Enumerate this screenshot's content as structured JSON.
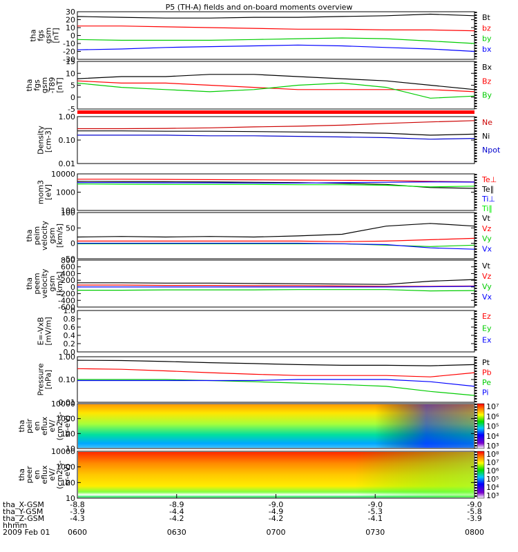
{
  "title": "P5 (TH-A) fields and on-board moments overview",
  "chart_data": {
    "type": "line",
    "time_axis": {
      "label": "hhmm",
      "date": "2009 Feb 01",
      "ticks": [
        "0600",
        "0630",
        "0700",
        "0730",
        "0800"
      ],
      "ephemeris": [
        {
          "name": "tha_X-GSM",
          "values": [
            "-8.8",
            "-8.9",
            "-9.0",
            "-9.0",
            "-9.0"
          ]
        },
        {
          "name": "tha_Y-GSM",
          "values": [
            "-3.9",
            "-4.4",
            "-4.9",
            "-5.3",
            "-5.8"
          ]
        },
        {
          "name": "tha_Z-GSM",
          "values": [
            "-4.3",
            "-4.2",
            "-4.2",
            "-4.1",
            "-3.9"
          ]
        }
      ]
    },
    "panels": [
      {
        "id": "fgs",
        "ylabel": [
          "tha",
          "fgs",
          "gsm",
          "[nT]"
        ],
        "yticks": [
          "30",
          "20",
          "10",
          "0",
          "-10",
          "-20",
          "-30"
        ],
        "series": [
          {
            "name": "Bt",
            "color": "#000000",
            "values": [
              24,
              23,
              22,
              22,
              23,
              23,
              24,
              25,
              27,
              25
            ]
          },
          {
            "name": "bz",
            "color": "#ff0000",
            "values": [
              12,
              12,
              11,
              10,
              9,
              8,
              8,
              7,
              7,
              6
            ]
          },
          {
            "name": "by",
            "color": "#00cc00",
            "values": [
              -5,
              -6,
              -6,
              -6,
              -5,
              -4,
              -3,
              -4,
              -7,
              -10
            ]
          },
          {
            "name": "bx",
            "color": "#0000ff",
            "values": [
              -18,
              -17,
              -15,
              -14,
              -13,
              -12,
              -13,
              -15,
              -17,
              -20
            ]
          }
        ]
      },
      {
        "id": "fgs_t89",
        "ylabel": [
          "tha",
          "fgs",
          "gsm",
          "-T89",
          "[nT]"
        ],
        "yticks": [
          "15",
          "10",
          "5",
          "0",
          "-5"
        ],
        "series": [
          {
            "name": "Bx",
            "color": "#000000",
            "values": [
              7,
              8,
              8,
              9,
              9,
              8,
              7,
              6,
              4,
              2
            ]
          },
          {
            "name": "Bz",
            "color": "#ff0000",
            "values": [
              6,
              5,
              5,
              4,
              3,
              2,
              2,
              2,
              2,
              1
            ]
          },
          {
            "name": "By",
            "color": "#00cc00",
            "values": [
              5,
              3,
              2,
              1,
              2,
              4,
              5,
              3,
              -2,
              -1
            ]
          }
        ]
      },
      {
        "id": "density",
        "ylabel": [
          "Density",
          "[cm-3]"
        ],
        "yticks": [
          "1.00",
          "0.10",
          "0.01"
        ],
        "scale": "log",
        "series": [
          {
            "name": "Ne",
            "color": "#cc0000",
            "values": [
              0.35,
              0.35,
              0.36,
              0.38,
              0.42,
              0.45,
              0.5,
              0.6,
              0.7,
              0.8
            ]
          },
          {
            "name": "Ni",
            "color": "#000000",
            "values": [
              0.28,
              0.28,
              0.27,
              0.27,
              0.26,
              0.25,
              0.24,
              0.22,
              0.18,
              0.2
            ]
          },
          {
            "name": "Npot",
            "color": "#0000cc",
            "values": [
              0.18,
              0.18,
              0.18,
              0.17,
              0.17,
              0.16,
              0.15,
              0.14,
              0.12,
              0.13
            ]
          }
        ]
      },
      {
        "id": "temp",
        "ylabel": [
          "mom3",
          "[eV]"
        ],
        "yticks": [
          "10000",
          "1000",
          "100"
        ],
        "scale": "log",
        "series": [
          {
            "name": "Te⊥",
            "color": "#ff0000",
            "values": [
              6000,
              6000,
              5800,
              5600,
              5500,
              5300,
              5200,
              5000,
              4500,
              4200
            ]
          },
          {
            "name": "Te∥",
            "color": "#000000",
            "values": [
              4500,
              4400,
              4300,
              4200,
              4000,
              3800,
              3500,
              3000,
              2000,
              1800
            ]
          },
          {
            "name": "Ti⊥",
            "color": "#0000ff",
            "values": [
              3800,
              3800,
              3700,
              3700,
              3600,
              3600,
              3800,
              4000,
              4200,
              4100
            ]
          },
          {
            "name": "Ti∥",
            "color": "#00ee00",
            "values": [
              3200,
              3100,
              3000,
              3000,
              3000,
              2900,
              2900,
              2700,
              2200,
              2400
            ]
          }
        ]
      },
      {
        "id": "peim_vel",
        "ylabel": [
          "tha",
          "peim",
          "velocity",
          "gsm",
          "[km/s]"
        ],
        "yticks": [
          "100",
          "50",
          "0",
          "-50"
        ],
        "series": [
          {
            "name": "Vt",
            "color": "#000000",
            "values": [
              20,
              22,
              20,
              22,
              20,
              24,
              30,
              60,
              70,
              60
            ]
          },
          {
            "name": "Vz",
            "color": "#ff0000",
            "values": [
              5,
              5,
              5,
              5,
              5,
              5,
              3,
              5,
              10,
              15
            ]
          },
          {
            "name": "Vy",
            "color": "#00cc00",
            "values": [
              -5,
              -5,
              -5,
              -5,
              -5,
              -5,
              -5,
              -10,
              -15,
              -10
            ]
          },
          {
            "name": "Vx",
            "color": "#0000ff",
            "values": [
              -3,
              -3,
              -3,
              -3,
              -3,
              -3,
              -5,
              -8,
              -20,
              -25
            ]
          }
        ]
      },
      {
        "id": "peem_vel",
        "ylabel": [
          "tha",
          "peem",
          "velocity",
          "gsm",
          "[km/s]"
        ],
        "yticks": [
          "800",
          "600",
          "400",
          "200",
          "0",
          "-200",
          "-400",
          "-600"
        ],
        "series": [
          {
            "name": "Vt",
            "color": "#000000",
            "values": [
              150,
              150,
              140,
              140,
              130,
              120,
              110,
              100,
              200,
              250
            ]
          },
          {
            "name": "Vz",
            "color": "#ff0000",
            "values": [
              80,
              80,
              70,
              70,
              60,
              60,
              50,
              40,
              40,
              50
            ]
          },
          {
            "name": "Vy",
            "color": "#00cc00",
            "values": [
              -80,
              -80,
              -70,
              -70,
              -70,
              -60,
              -60,
              -60,
              -100,
              -90
            ]
          },
          {
            "name": "Vx",
            "color": "#0000ff",
            "values": [
              20,
              20,
              20,
              20,
              20,
              20,
              20,
              20,
              30,
              40
            ]
          }
        ]
      },
      {
        "id": "efield",
        "ylabel": [
          "E=-VxB",
          "[mV/m]"
        ],
        "yticks": [
          "1.0",
          "0.8",
          "0.6",
          "0.4",
          "0.2",
          "0.0"
        ],
        "series": [
          {
            "name": "Ez",
            "color": "#ff0000",
            "values": []
          },
          {
            "name": "Ey",
            "color": "#00cc00",
            "values": []
          },
          {
            "name": "Ex",
            "color": "#0000ff",
            "values": []
          }
        ]
      },
      {
        "id": "pressure",
        "ylabel": [
          "Pressure",
          "[nPa]"
        ],
        "yticks": [
          "1.00",
          "0.10",
          "0.01"
        ],
        "scale": "log",
        "series": [
          {
            "name": "Pt",
            "color": "#000000",
            "values": [
              0.7,
              0.68,
              0.62,
              0.55,
              0.5,
              0.45,
              0.42,
              0.42,
              0.4,
              0.45
            ]
          },
          {
            "name": "Pb",
            "color": "#ff0000",
            "values": [
              0.3,
              0.28,
              0.24,
              0.2,
              0.17,
              0.15,
              0.15,
              0.15,
              0.13,
              0.2
            ]
          },
          {
            "name": "Pe",
            "color": "#00cc00",
            "values": [
              0.1,
              0.1,
              0.1,
              0.09,
              0.08,
              0.07,
              0.06,
              0.05,
              0.03,
              0.02
            ]
          },
          {
            "name": "Pi",
            "color": "#0000ff",
            "values": [
              0.09,
              0.09,
              0.09,
              0.09,
              0.09,
              0.1,
              0.1,
              0.1,
              0.08,
              0.05
            ]
          }
        ]
      },
      {
        "id": "peir_spec",
        "type": "heatmap",
        "ylabel": [
          "tha",
          "peir",
          "en",
          "eflux",
          "eV/",
          "(cm2-s-",
          "sr-eV)"
        ],
        "yticks": [
          "10000",
          "1000",
          "100",
          "10"
        ],
        "colorbar": [
          "10⁷",
          "10⁶",
          "10⁵",
          "10⁴",
          "10³"
        ]
      },
      {
        "id": "peer_spec",
        "type": "heatmap",
        "ylabel": [
          "tha",
          "peer",
          "en",
          "eflux",
          "eV/",
          "(cm2-s-",
          "sr-eV)"
        ],
        "yticks": [
          "10000",
          "1000",
          "100",
          "10"
        ],
        "colorbar": [
          "10⁸",
          "10⁷",
          "10⁶",
          "10⁵",
          "10⁴",
          "10³"
        ]
      }
    ]
  }
}
